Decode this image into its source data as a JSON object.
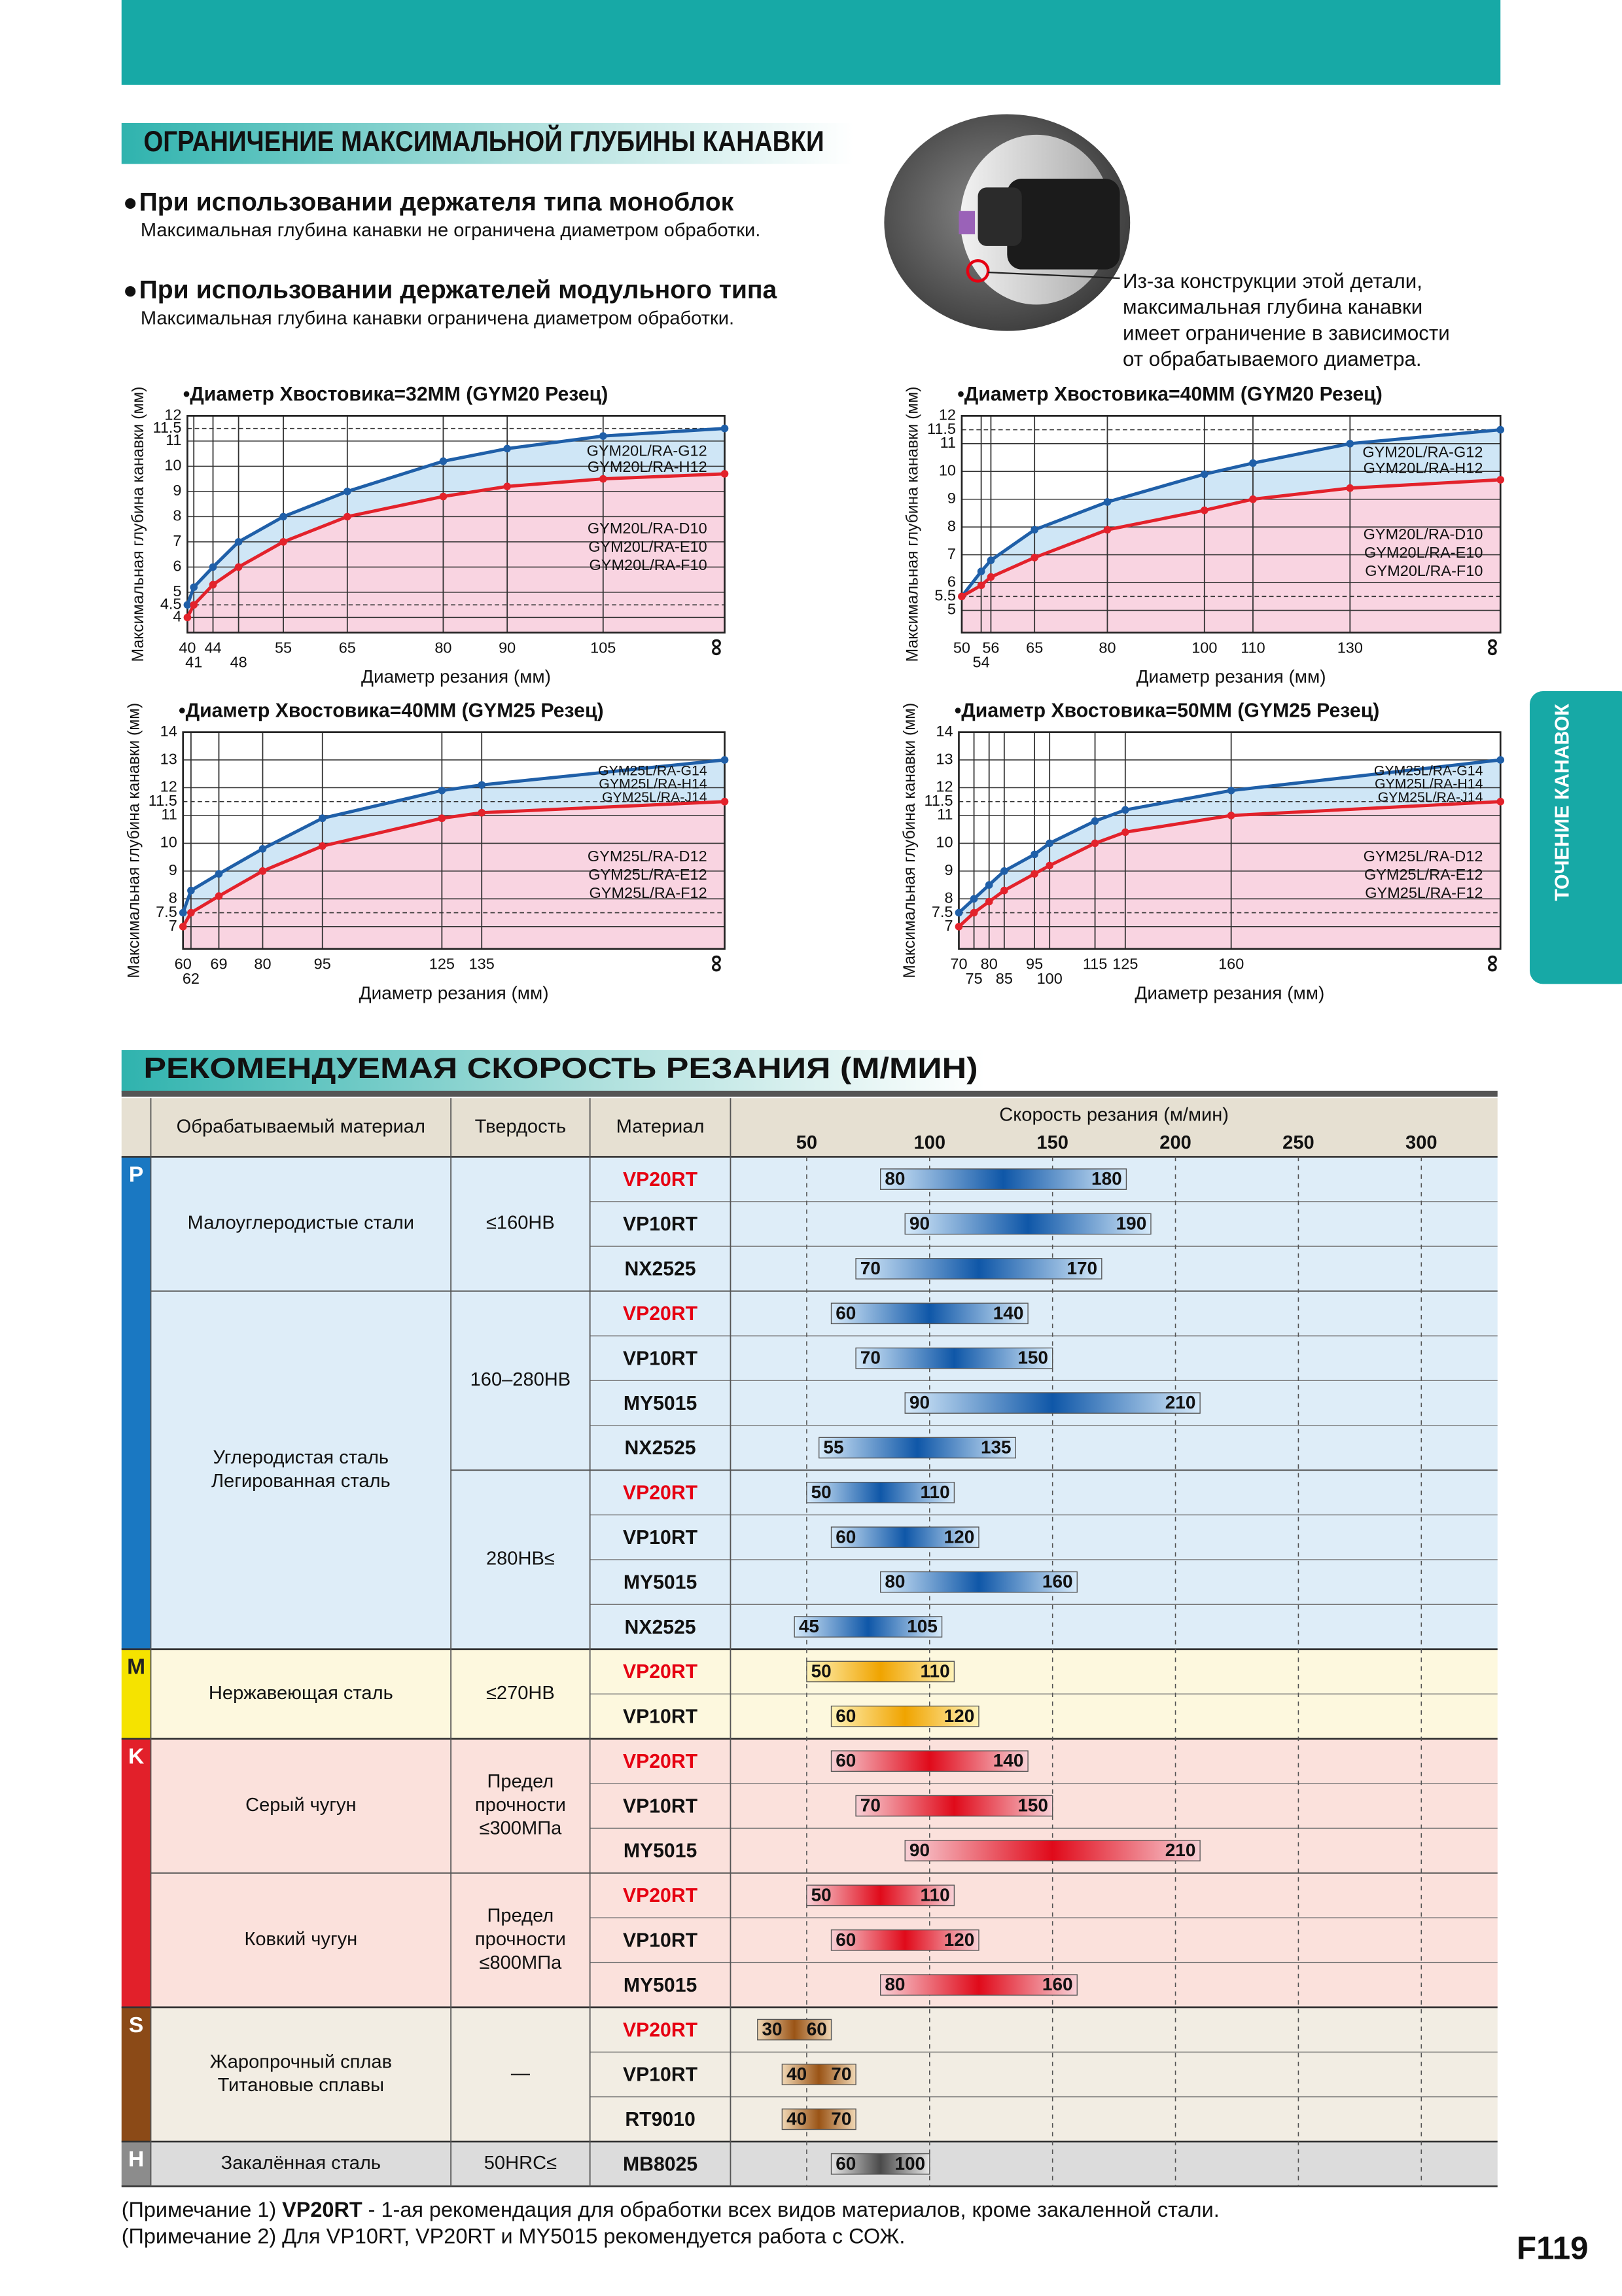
{
  "header": {
    "section_title": "ОГРАНИЧЕНИЕ МАКСИМАЛЬНОЙ ГЛУБИНЫ КАНАВКИ",
    "bullets": [
      {
        "title": "При использовании держателя типа моноблок",
        "text": "Максимальная глубина канавки не ограничена диаметром обработки."
      },
      {
        "title": "При использовании держателей модульного типа",
        "text": "Максимальная глубина канавки ограничена диаметром обработки."
      }
    ],
    "image_caption": [
      "Из-за конструкции этой детали,",
      "максимальная глубина канавки",
      "имеет ограничение в зависимости",
      "от обрабатываемого диаметра."
    ]
  },
  "side_tab": "ТОЧЕНИЕ КАНАВОК",
  "charts": [
    {
      "type": "line",
      "title": "•Диаметр Хвостовика=32ММ (GYM20 Резец)",
      "x_label": "Диаметр резания (мм)",
      "y_label": "Максимальная глубина канавки (мм)",
      "x": [
        40,
        41,
        44,
        48,
        55,
        65,
        80,
        90,
        105,
        124
      ],
      "xlim": [
        40,
        124
      ],
      "xticks": [
        40,
        41,
        44,
        48,
        55,
        65,
        80,
        90,
        105,
        {
          "value": 124,
          "label": "∞"
        }
      ],
      "ylim": [
        3.4,
        12
      ],
      "yticks": [
        4,
        4.5,
        5,
        6,
        7,
        8,
        9,
        10,
        11,
        11.5,
        12
      ],
      "series": [
        {
          "labels": [
            "GYM20L/RA-G12",
            "GYM20L/RA-H12"
          ],
          "color": "#1f5fa8",
          "fill": "#cfe6f6",
          "values": [
            4.5,
            5.2,
            6,
            7,
            8,
            9,
            10.2,
            10.7,
            11.2,
            11.5
          ]
        },
        {
          "labels": [
            "GYM20L/RA-D10",
            "GYM20L/RA-E10",
            "GYM20L/RA-F10"
          ],
          "color": "#e3222b",
          "fill": "#f9d4e1",
          "values": [
            4,
            4.5,
            5.3,
            6,
            7,
            8,
            8.8,
            9.2,
            9.5,
            9.7
          ]
        }
      ]
    },
    {
      "type": "line",
      "title": "•Диаметр Хвостовика=40ММ (GYM20 Резец)",
      "x_label": "Диаметр резания (мм)",
      "y_label": "Максимальная глубина канавки (мм)",
      "x": [
        50,
        54,
        56,
        65,
        80,
        100,
        110,
        130,
        161
      ],
      "xlim": [
        50,
        161
      ],
      "xticks": [
        50,
        54,
        56,
        65,
        80,
        100,
        110,
        130,
        {
          "value": 161,
          "label": "∞"
        }
      ],
      "ylim": [
        4.2,
        12
      ],
      "yticks": [
        5,
        5.5,
        6,
        7,
        8,
        9,
        10,
        11,
        11.5,
        12
      ],
      "series": [
        {
          "labels": [
            "GYM20L/RA-G12",
            "GYM20L/RA-H12"
          ],
          "color": "#1f5fa8",
          "fill": "#cfe6f6",
          "values": [
            5.5,
            6.4,
            6.8,
            7.9,
            8.9,
            9.9,
            10.3,
            11,
            11.5
          ]
        },
        {
          "labels": [
            "GYM20L/RA-D10",
            "GYM20L/RA-E10",
            "GYM20L/RA-F10"
          ],
          "color": "#e3222b",
          "fill": "#f9d4e1",
          "values": [
            5.5,
            5.9,
            6.2,
            6.9,
            7.9,
            8.6,
            9,
            9.4,
            9.7
          ]
        }
      ]
    },
    {
      "type": "line",
      "title": "•Диаметр Хвостовика=40ММ (GYM25 Резец)",
      "x_label": "Диаметр резания (мм)",
      "y_label": "Максимальная глубина канавки (мм)",
      "x": [
        60,
        62,
        69,
        80,
        95,
        125,
        135,
        196
      ],
      "xlim": [
        60,
        196
      ],
      "xticks": [
        60,
        62,
        69,
        80,
        95,
        125,
        135,
        {
          "value": 196,
          "label": "∞"
        }
      ],
      "ylim": [
        6.2,
        14
      ],
      "yticks": [
        7,
        7.5,
        8,
        9,
        10,
        11,
        11.5,
        12,
        13,
        14
      ],
      "series": [
        {
          "labels": [
            "GYM25L/RA-G14",
            "GYM25L/RA-H14",
            "GYM25L/RA-J14"
          ],
          "color": "#1f5fa8",
          "fill": "#cfe6f6",
          "values": [
            7.5,
            8.3,
            8.9,
            9.8,
            10.9,
            11.9,
            12.1,
            13
          ]
        },
        {
          "labels": [
            "GYM25L/RA-D12",
            "GYM25L/RA-E12",
            "GYM25L/RA-F12"
          ],
          "color": "#e3222b",
          "fill": "#f9d4e1",
          "values": [
            7,
            7.5,
            8.1,
            9,
            9.9,
            10.9,
            11.1,
            11.5
          ]
        }
      ]
    },
    {
      "type": "line",
      "title": "•Диаметр Хвостовика=50ММ (GYM25 Резец)",
      "x_label": "Диаметр резания (мм)",
      "y_label": "Максимальная глубина канавки (мм)",
      "x": [
        70,
        75,
        80,
        85,
        95,
        100,
        115,
        125,
        160,
        249
      ],
      "xlim": [
        70,
        249
      ],
      "xticks": [
        70,
        75,
        80,
        85,
        95,
        100,
        115,
        125,
        160,
        {
          "value": 249,
          "label": "∞"
        }
      ],
      "ylim": [
        6.2,
        14
      ],
      "yticks": [
        7,
        7.5,
        8,
        9,
        10,
        11,
        11.5,
        12,
        13,
        14
      ],
      "series": [
        {
          "labels": [
            "GYM25L/RA-G14",
            "GYM25L/RA-H14",
            "GYM25L/RA-J14"
          ],
          "color": "#1f5fa8",
          "fill": "#cfe6f6",
          "values": [
            7.5,
            8,
            8.5,
            9,
            9.6,
            10,
            10.8,
            11.2,
            11.9,
            13
          ]
        },
        {
          "labels": [
            "GYM25L/RA-D12",
            "GYM25L/RA-E12",
            "GYM25L/RA-F12"
          ],
          "color": "#e3222b",
          "fill": "#f9d4e1",
          "values": [
            7,
            7.5,
            7.9,
            8.3,
            8.9,
            9.2,
            10,
            10.4,
            11,
            11.5
          ]
        }
      ]
    }
  ],
  "speed_table": {
    "title": "РЕКОМЕНДУЕМАЯ СКОРОСТЬ РЕЗАНИЯ (М/МИН)",
    "columns": [
      "Обрабатываемый материал",
      "Твердость",
      "Материал",
      "Скорость резания (м/мин)"
    ],
    "xlim": [
      19,
      331
    ],
    "xticks": [
      50,
      100,
      150,
      200,
      250,
      300
    ],
    "highlight_grade": "VP20RT",
    "highlight_color": "#e60012",
    "groups": [
      {
        "code": "P",
        "stripe_color": "#1a78c2",
        "letter_color": "#ffffff",
        "background": "#deedf8",
        "bar_colors": [
          "#d6eafa",
          "#0f57a8"
        ],
        "sections": [
          {
            "material": [
              "Малоуглеродистые стали"
            ],
            "blocks": [
              {
                "hardness": [
                  "≤160HB"
                ],
                "rows": [
                  {
                    "grade": "VP20RT",
                    "min": 80,
                    "max": 180
                  },
                  {
                    "grade": "VP10RT",
                    "min": 90,
                    "max": 190
                  },
                  {
                    "grade": "NX2525",
                    "min": 70,
                    "max": 170
                  }
                ]
              }
            ]
          },
          {
            "material": [
              "Углеродистая сталь",
              "Легированная сталь"
            ],
            "blocks": [
              {
                "hardness": [
                  "160–280HB"
                ],
                "rows": [
                  {
                    "grade": "VP20RT",
                    "min": 60,
                    "max": 140
                  },
                  {
                    "grade": "VP10RT",
                    "min": 70,
                    "max": 150
                  },
                  {
                    "grade": "MY5015",
                    "min": 90,
                    "max": 210
                  },
                  {
                    "grade": "NX2525",
                    "min": 55,
                    "max": 135
                  }
                ]
              },
              {
                "hardness": [
                  "280HB≤"
                ],
                "rows": [
                  {
                    "grade": "VP20RT",
                    "min": 50,
                    "max": 110
                  },
                  {
                    "grade": "VP10RT",
                    "min": 60,
                    "max": 120
                  },
                  {
                    "grade": "MY5015",
                    "min": 80,
                    "max": 160
                  },
                  {
                    "grade": "NX2525",
                    "min": 45,
                    "max": 105
                  }
                ]
              }
            ]
          }
        ]
      },
      {
        "code": "M",
        "stripe_color": "#f5e300",
        "letter_color": "#222222",
        "background": "#fdf8de",
        "bar_colors": [
          "#fff3b8",
          "#f0a400"
        ],
        "sections": [
          {
            "material": [
              "Нержавеющая сталь"
            ],
            "blocks": [
              {
                "hardness": [
                  "≤270HB"
                ],
                "rows": [
                  {
                    "grade": "VP20RT",
                    "min": 50,
                    "max": 110
                  },
                  {
                    "grade": "VP10RT",
                    "min": 60,
                    "max": 120
                  }
                ]
              }
            ]
          }
        ]
      },
      {
        "code": "K",
        "stripe_color": "#e2202a",
        "letter_color": "#ffffff",
        "background": "#fbe1dc",
        "bar_colors": [
          "#f8d0d6",
          "#e00a1a"
        ],
        "sections": [
          {
            "material": [
              "Серый чугун"
            ],
            "blocks": [
              {
                "hardness": [
                  "Предел",
                  "прочности",
                  "≤300МПа"
                ],
                "rows": [
                  {
                    "grade": "VP20RT",
                    "min": 60,
                    "max": 140
                  },
                  {
                    "grade": "VP10RT",
                    "min": 70,
                    "max": 150
                  },
                  {
                    "grade": "MY5015",
                    "min": 90,
                    "max": 210
                  }
                ]
              }
            ]
          },
          {
            "material": [
              "Ковкий чугун"
            ],
            "blocks": [
              {
                "hardness": [
                  "Предел",
                  "прочности",
                  "≤800МПа"
                ],
                "rows": [
                  {
                    "grade": "VP20RT",
                    "min": 50,
                    "max": 110
                  },
                  {
                    "grade": "VP10RT",
                    "min": 60,
                    "max": 120
                  },
                  {
                    "grade": "MY5015",
                    "min": 80,
                    "max": 160
                  }
                ]
              }
            ]
          }
        ]
      },
      {
        "code": "S",
        "stripe_color": "#8b4a17",
        "letter_color": "#ffffff",
        "background": "#f2ede3",
        "bar_colors": [
          "#f0d7b4",
          "#9a5416"
        ],
        "sections": [
          {
            "material": [
              "Жаропрочный сплав",
              "Титановые сплавы"
            ],
            "blocks": [
              {
                "hardness": [
                  "—"
                ],
                "rows": [
                  {
                    "grade": "VP20RT",
                    "min": 30,
                    "max": 60
                  },
                  {
                    "grade": "VP10RT",
                    "min": 40,
                    "max": 70
                  },
                  {
                    "grade": "RT9010",
                    "min": 40,
                    "max": 70
                  }
                ]
              }
            ]
          }
        ]
      },
      {
        "code": "H",
        "stripe_color": "#8c8c8c",
        "letter_color": "#ffffff",
        "background": "#dcdcdc",
        "bar_colors": [
          "#e6e6e6",
          "#4a4a4a"
        ],
        "sections": [
          {
            "material": [
              "Закалённая сталь"
            ],
            "blocks": [
              {
                "hardness": [
                  "50HRC≤"
                ],
                "rows": [
                  {
                    "grade": "MB8025",
                    "min": 60,
                    "max": 100
                  }
                ]
              }
            ]
          }
        ]
      }
    ]
  },
  "notes": [
    {
      "prefix": "(Примечание 1)",
      "bold": "VP20RT",
      "text": "- 1-ая рекомендация для обработки всех видов материалов, кроме закаленной стали."
    },
    {
      "prefix": "(Примечание 2)",
      "text": "Для VP10RT, VP20RT и MY5015 рекомендуется работа с СОЖ."
    }
  ],
  "page_number": "F119"
}
